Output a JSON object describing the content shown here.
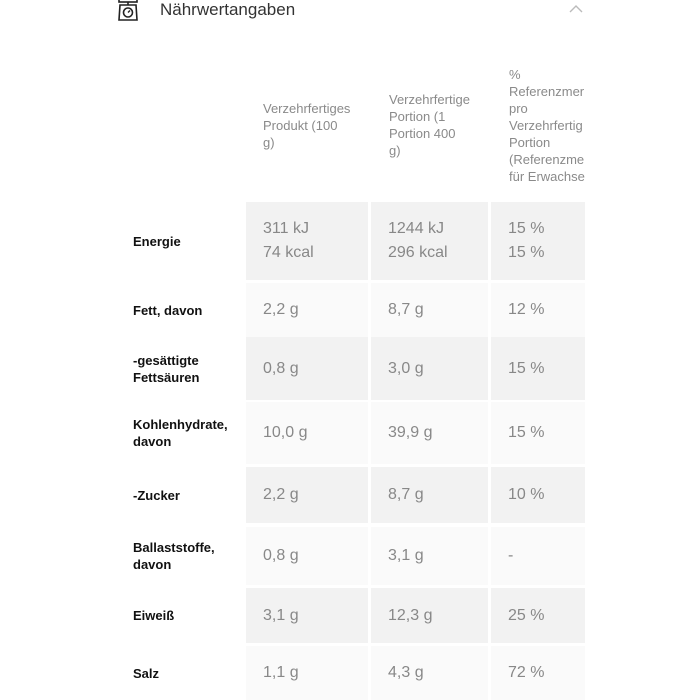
{
  "section": {
    "title": "Nährwertangaben",
    "icon": "kitchen-scale-icon",
    "toggle_icon": "chevron-up-icon"
  },
  "columns": [
    [
      "Verzehrfertiges",
      "Produkt (100",
      "g)"
    ],
    [
      "Verzehrfertige",
      "Portion (1",
      "Portion 400",
      "g)"
    ],
    [
      "%",
      "Referenzmer",
      "pro",
      "Verzehrfertig",
      "Portion",
      "(Referenzme",
      "für Erwachse"
    ]
  ],
  "rows": [
    {
      "label": [
        "Energie"
      ],
      "v1": [
        "311 kJ",
        "74 kcal"
      ],
      "v2": [
        "1244 kJ",
        "296 kcal"
      ],
      "v3": [
        "15 %",
        "15 %"
      ]
    },
    {
      "label": [
        "Fett, davon"
      ],
      "v1": [
        "2,2 g"
      ],
      "v2": [
        "8,7 g"
      ],
      "v3": [
        "12 %"
      ]
    },
    {
      "label": [
        "-gesättigte",
        "Fettsäuren"
      ],
      "v1": [
        "0,8 g"
      ],
      "v2": [
        "3,0 g"
      ],
      "v3": [
        "15 %"
      ]
    },
    {
      "label": [
        "Kohlenhydrate,",
        "davon"
      ],
      "v1": [
        "10,0 g"
      ],
      "v2": [
        "39,9 g"
      ],
      "v3": [
        "15 %"
      ]
    },
    {
      "label": [
        "-Zucker"
      ],
      "v1": [
        "2,2 g"
      ],
      "v2": [
        "8,7 g"
      ],
      "v3": [
        "10 %"
      ]
    },
    {
      "label": [
        "Ballaststoffe,",
        "davon"
      ],
      "v1": [
        "0,8 g"
      ],
      "v2": [
        "3,1 g"
      ],
      "v3": [
        "-"
      ]
    },
    {
      "label": [
        "Eiweiß"
      ],
      "v1": [
        "3,1 g"
      ],
      "v2": [
        "12,3 g"
      ],
      "v3": [
        "25 %"
      ]
    },
    {
      "label": [
        "Salz"
      ],
      "v1": [
        "1,1 g"
      ],
      "v2": [
        "4,3 g"
      ],
      "v3": [
        "72 %"
      ]
    }
  ]
}
